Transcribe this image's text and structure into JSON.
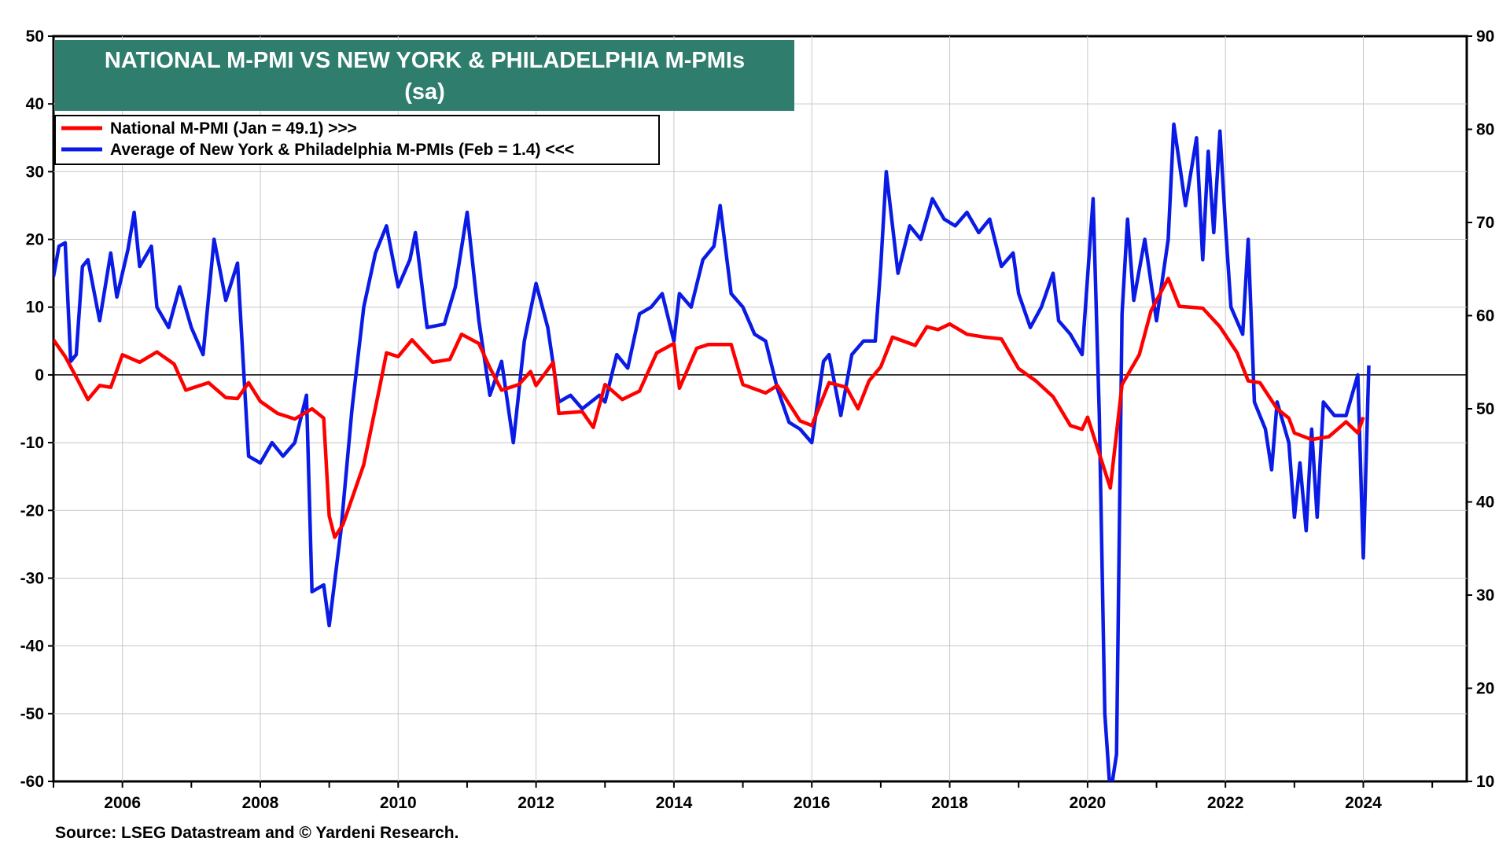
{
  "chart_data": {
    "type": "line",
    "title": "NATIONAL M-PMI VS NEW YORK & PHILADELPHIA M-PMIs",
    "subtitle": "(sa)",
    "source": "Source: LSEG Datastream and © Yardeni Research.",
    "x_tick_labels": [
      "2006",
      "2008",
      "2010",
      "2012",
      "2014",
      "2016",
      "2018",
      "2020",
      "2022",
      "2024"
    ],
    "x_range": [
      2005.0,
      2025.5
    ],
    "left_axis": {
      "range": [
        -60,
        50
      ],
      "ticks": [
        "50",
        "40",
        "30",
        "20",
        "10",
        "0",
        "-10",
        "-20",
        "-30",
        "-40",
        "-50",
        "-60"
      ]
    },
    "right_axis": {
      "range": [
        10,
        90
      ],
      "ticks": [
        "90",
        "80",
        "70",
        "60",
        "50",
        "40",
        "30",
        "20",
        "10"
      ]
    },
    "reference_line_left": 0,
    "grid": true,
    "legend_position": "top-left",
    "colors": {
      "title_bg": "#2E7D6D",
      "national": "#FF0000",
      "regional": "#0A1BE6",
      "grid": "#C8C8C8"
    },
    "series": [
      {
        "name": "National M-PMI (Jan = 49.1) >>>",
        "axis": "right",
        "color": "#FF0000",
        "points": [
          [
            2005.0,
            57.4
          ],
          [
            2005.17,
            55.6
          ],
          [
            2005.33,
            53.4
          ],
          [
            2005.5,
            51.0
          ],
          [
            2005.67,
            52.5
          ],
          [
            2005.83,
            52.3
          ],
          [
            2006.0,
            55.8
          ],
          [
            2006.25,
            55.0
          ],
          [
            2006.5,
            56.1
          ],
          [
            2006.75,
            54.8
          ],
          [
            2006.92,
            52.0
          ],
          [
            2007.25,
            52.8
          ],
          [
            2007.5,
            51.2
          ],
          [
            2007.67,
            51.1
          ],
          [
            2007.83,
            52.8
          ],
          [
            2008.0,
            50.8
          ],
          [
            2008.25,
            49.5
          ],
          [
            2008.5,
            48.9
          ],
          [
            2008.75,
            50.0
          ],
          [
            2008.92,
            49.0
          ],
          [
            2009.0,
            38.5
          ],
          [
            2009.08,
            36.2
          ],
          [
            2009.2,
            37.6
          ],
          [
            2009.5,
            44.0
          ],
          [
            2009.75,
            53.0
          ],
          [
            2009.83,
            56.0
          ],
          [
            2010.0,
            55.6
          ],
          [
            2010.2,
            57.4
          ],
          [
            2010.5,
            55.0
          ],
          [
            2010.75,
            55.3
          ],
          [
            2010.92,
            58.0
          ],
          [
            2011.17,
            57.0
          ],
          [
            2011.33,
            54.4
          ],
          [
            2011.5,
            52.0
          ],
          [
            2011.75,
            52.6
          ],
          [
            2011.92,
            54.0
          ],
          [
            2012.0,
            52.5
          ],
          [
            2012.25,
            55.0
          ],
          [
            2012.33,
            49.5
          ],
          [
            2012.67,
            49.7
          ],
          [
            2012.83,
            48.0
          ],
          [
            2013.0,
            52.6
          ],
          [
            2013.25,
            51.0
          ],
          [
            2013.5,
            51.9
          ],
          [
            2013.75,
            56.0
          ],
          [
            2014.0,
            57.0
          ],
          [
            2014.08,
            52.2
          ],
          [
            2014.33,
            56.5
          ],
          [
            2014.5,
            56.9
          ],
          [
            2014.83,
            56.9
          ],
          [
            2015.0,
            52.6
          ],
          [
            2015.33,
            51.7
          ],
          [
            2015.5,
            52.5
          ],
          [
            2015.83,
            48.7
          ],
          [
            2016.0,
            48.2
          ],
          [
            2016.25,
            52.8
          ],
          [
            2016.5,
            52.3
          ],
          [
            2016.67,
            50.0
          ],
          [
            2016.83,
            53.0
          ],
          [
            2017.0,
            54.5
          ],
          [
            2017.17,
            57.7
          ],
          [
            2017.5,
            56.8
          ],
          [
            2017.67,
            58.8
          ],
          [
            2017.83,
            58.5
          ],
          [
            2018.0,
            59.1
          ],
          [
            2018.25,
            58.0
          ],
          [
            2018.5,
            57.7
          ],
          [
            2018.75,
            57.5
          ],
          [
            2019.0,
            54.3
          ],
          [
            2019.25,
            53.0
          ],
          [
            2019.5,
            51.3
          ],
          [
            2019.75,
            48.2
          ],
          [
            2019.92,
            47.8
          ],
          [
            2020.0,
            49.1
          ],
          [
            2020.33,
            41.5
          ],
          [
            2020.5,
            52.6
          ],
          [
            2020.75,
            55.8
          ],
          [
            2020.92,
            60.5
          ],
          [
            2021.17,
            64.0
          ],
          [
            2021.33,
            61.0
          ],
          [
            2021.67,
            60.8
          ],
          [
            2021.92,
            58.8
          ],
          [
            2022.17,
            56.0
          ],
          [
            2022.33,
            53.0
          ],
          [
            2022.5,
            52.8
          ],
          [
            2022.75,
            50.0
          ],
          [
            2022.92,
            49.0
          ],
          [
            2023.0,
            47.4
          ],
          [
            2023.25,
            46.7
          ],
          [
            2023.5,
            47.0
          ],
          [
            2023.75,
            48.6
          ],
          [
            2023.92,
            47.4
          ],
          [
            2024.0,
            49.1
          ]
        ]
      },
      {
        "name": "Average of New York & Philadelphia M-PMIs (Feb = 1.4) <<<",
        "axis": "left",
        "color": "#0A1BE6",
        "points": [
          [
            2005.0,
            14.5
          ],
          [
            2005.08,
            19.0
          ],
          [
            2005.17,
            19.5
          ],
          [
            2005.25,
            2.0
          ],
          [
            2005.33,
            3.0
          ],
          [
            2005.42,
            16.0
          ],
          [
            2005.5,
            17.0
          ],
          [
            2005.67,
            8.0
          ],
          [
            2005.83,
            18.0
          ],
          [
            2005.92,
            11.5
          ],
          [
            2006.08,
            18.5
          ],
          [
            2006.17,
            24.0
          ],
          [
            2006.25,
            16.0
          ],
          [
            2006.42,
            19.0
          ],
          [
            2006.5,
            10.0
          ],
          [
            2006.67,
            7.0
          ],
          [
            2006.83,
            13.0
          ],
          [
            2007.0,
            7.0
          ],
          [
            2007.17,
            3.0
          ],
          [
            2007.33,
            20.0
          ],
          [
            2007.5,
            11.0
          ],
          [
            2007.67,
            16.5
          ],
          [
            2007.83,
            -12.0
          ],
          [
            2008.0,
            -13.0
          ],
          [
            2008.17,
            -10.0
          ],
          [
            2008.33,
            -12.0
          ],
          [
            2008.5,
            -10.0
          ],
          [
            2008.67,
            -3.0
          ],
          [
            2008.75,
            -32.0
          ],
          [
            2008.92,
            -31.0
          ],
          [
            2009.0,
            -37.0
          ],
          [
            2009.17,
            -23.0
          ],
          [
            2009.33,
            -5.0
          ],
          [
            2009.5,
            10.0
          ],
          [
            2009.67,
            18.0
          ],
          [
            2009.83,
            22.0
          ],
          [
            2010.0,
            13.0
          ],
          [
            2010.17,
            17.0
          ],
          [
            2010.25,
            21.0
          ],
          [
            2010.42,
            7.0
          ],
          [
            2010.67,
            7.5
          ],
          [
            2010.83,
            13.0
          ],
          [
            2011.0,
            24.0
          ],
          [
            2011.17,
            8.0
          ],
          [
            2011.33,
            -3.0
          ],
          [
            2011.5,
            2.0
          ],
          [
            2011.67,
            -10.0
          ],
          [
            2011.83,
            5.0
          ],
          [
            2012.0,
            13.5
          ],
          [
            2012.17,
            7.0
          ],
          [
            2012.33,
            -4.0
          ],
          [
            2012.5,
            -3.0
          ],
          [
            2012.67,
            -5.0
          ],
          [
            2012.92,
            -3.0
          ],
          [
            2013.0,
            -4.0
          ],
          [
            2013.17,
            3.0
          ],
          [
            2013.33,
            1.0
          ],
          [
            2013.5,
            9.0
          ],
          [
            2013.67,
            10.0
          ],
          [
            2013.83,
            12.0
          ],
          [
            2014.0,
            5.0
          ],
          [
            2014.08,
            12.0
          ],
          [
            2014.25,
            10.0
          ],
          [
            2014.42,
            17.0
          ],
          [
            2014.58,
            19.0
          ],
          [
            2014.67,
            25.0
          ],
          [
            2014.83,
            12.0
          ],
          [
            2015.0,
            10.0
          ],
          [
            2015.17,
            6.0
          ],
          [
            2015.33,
            5.0
          ],
          [
            2015.5,
            -2.0
          ],
          [
            2015.67,
            -7.0
          ],
          [
            2015.83,
            -8.0
          ],
          [
            2016.0,
            -10.0
          ],
          [
            2016.17,
            2.0
          ],
          [
            2016.25,
            3.0
          ],
          [
            2016.42,
            -6.0
          ],
          [
            2016.58,
            3.0
          ],
          [
            2016.75,
            5.0
          ],
          [
            2016.92,
            5.0
          ],
          [
            2017.0,
            16.0
          ],
          [
            2017.08,
            30.0
          ],
          [
            2017.25,
            15.0
          ],
          [
            2017.42,
            22.0
          ],
          [
            2017.58,
            20.0
          ],
          [
            2017.75,
            26.0
          ],
          [
            2017.92,
            23.0
          ],
          [
            2018.08,
            22.0
          ],
          [
            2018.25,
            24.0
          ],
          [
            2018.42,
            21.0
          ],
          [
            2018.58,
            23.0
          ],
          [
            2018.75,
            16.0
          ],
          [
            2018.92,
            18.0
          ],
          [
            2019.0,
            12.0
          ],
          [
            2019.17,
            7.0
          ],
          [
            2019.33,
            10.0
          ],
          [
            2019.5,
            15.0
          ],
          [
            2019.58,
            8.0
          ],
          [
            2019.75,
            6.0
          ],
          [
            2019.92,
            3.0
          ],
          [
            2020.08,
            26.0
          ],
          [
            2020.17,
            -6.0
          ],
          [
            2020.25,
            -50.0
          ],
          [
            2020.33,
            -62.0
          ],
          [
            2020.42,
            -56.0
          ],
          [
            2020.5,
            9.0
          ],
          [
            2020.58,
            23.0
          ],
          [
            2020.67,
            11.0
          ],
          [
            2020.83,
            20.0
          ],
          [
            2021.0,
            8.0
          ],
          [
            2021.17,
            20.0
          ],
          [
            2021.25,
            37.0
          ],
          [
            2021.42,
            25.0
          ],
          [
            2021.58,
            35.0
          ],
          [
            2021.67,
            17.0
          ],
          [
            2021.75,
            33.0
          ],
          [
            2021.83,
            21.0
          ],
          [
            2021.92,
            36.0
          ],
          [
            2022.0,
            22.0
          ],
          [
            2022.08,
            10.0
          ],
          [
            2022.25,
            6.0
          ],
          [
            2022.33,
            20.0
          ],
          [
            2022.42,
            -4.0
          ],
          [
            2022.58,
            -8.0
          ],
          [
            2022.67,
            -14.0
          ],
          [
            2022.75,
            -4.0
          ],
          [
            2022.92,
            -10.0
          ],
          [
            2023.0,
            -21.0
          ],
          [
            2023.08,
            -13.0
          ],
          [
            2023.17,
            -23.0
          ],
          [
            2023.25,
            -8.0
          ],
          [
            2023.33,
            -21.0
          ],
          [
            2023.42,
            -4.0
          ],
          [
            2023.58,
            -6.0
          ],
          [
            2023.75,
            -6.0
          ],
          [
            2023.92,
            0.0
          ],
          [
            2024.0,
            -27.0
          ],
          [
            2024.08,
            1.4
          ]
        ]
      }
    ]
  }
}
